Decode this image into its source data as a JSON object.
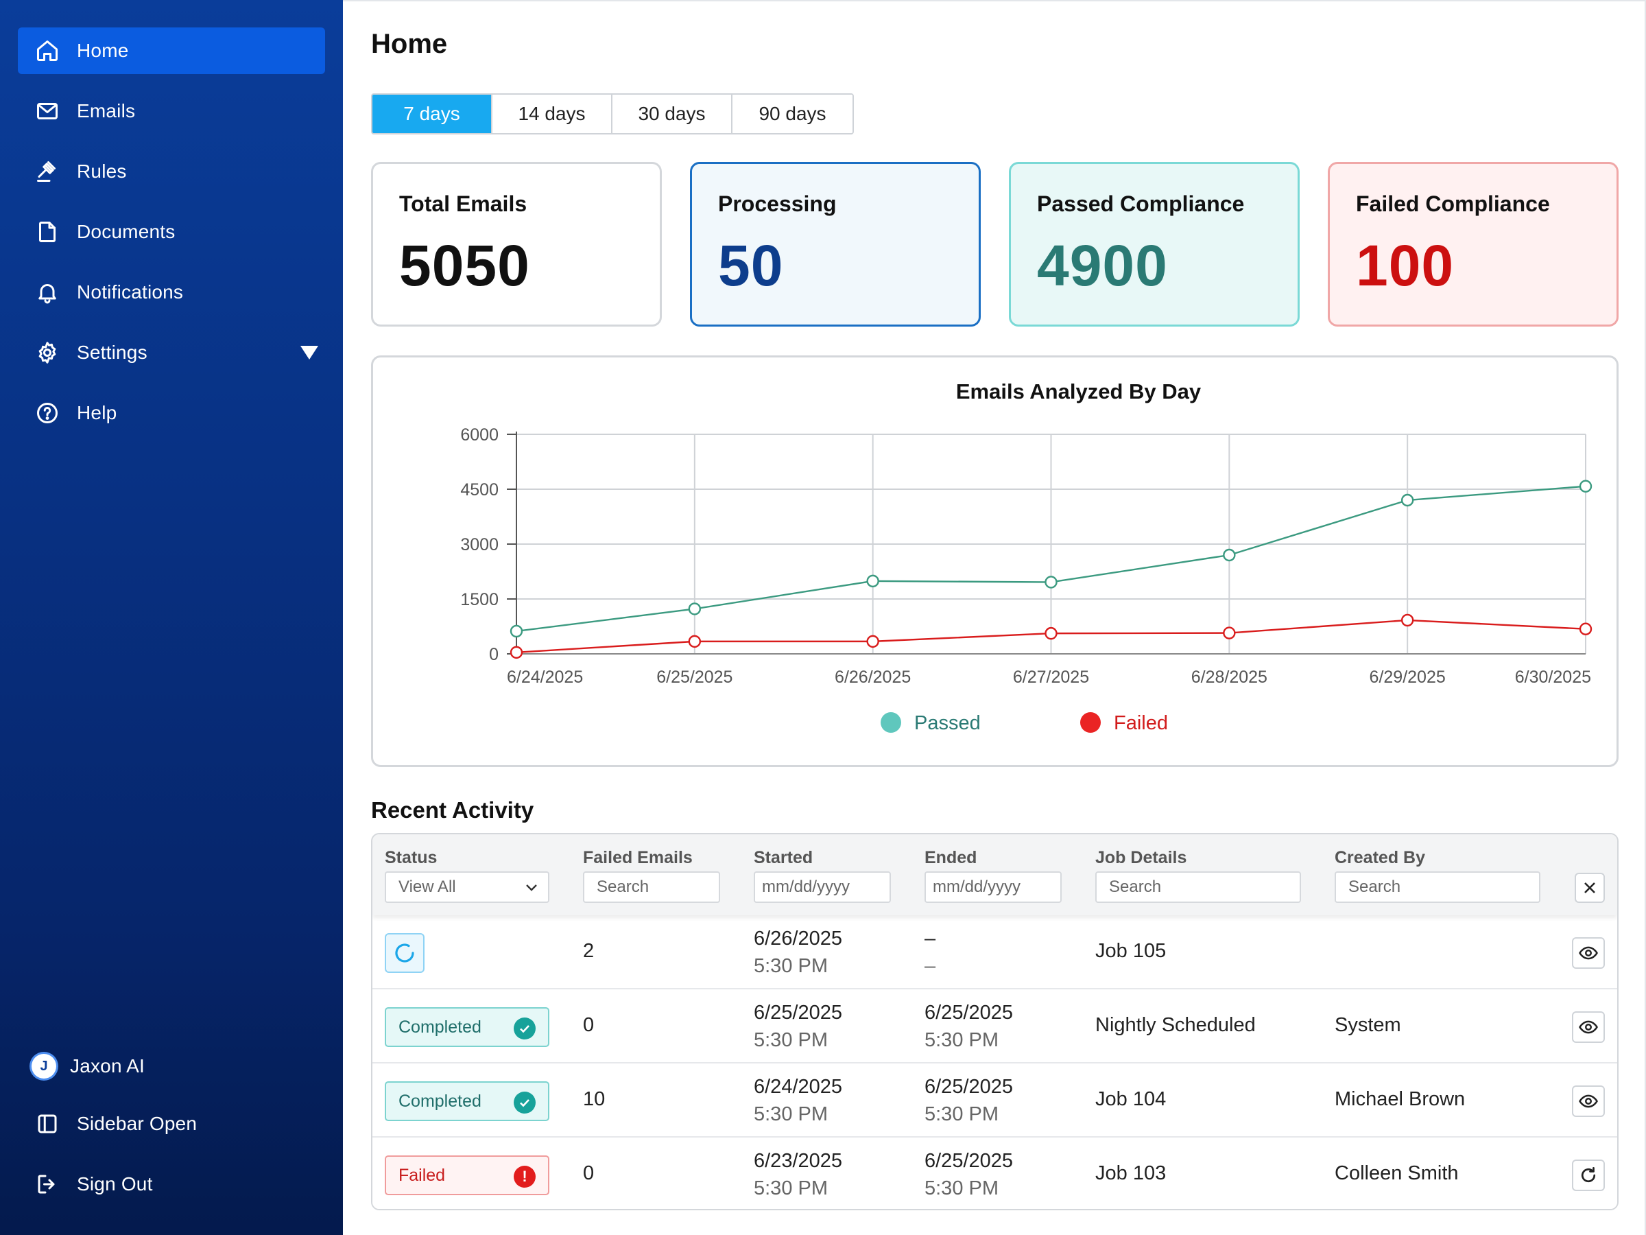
{
  "sidebar": {
    "nav": [
      {
        "label": "Home",
        "icon": "home-icon"
      },
      {
        "label": "Emails",
        "icon": "mail-icon"
      },
      {
        "label": "Rules",
        "icon": "gavel-icon"
      },
      {
        "label": "Documents",
        "icon": "document-icon"
      },
      {
        "label": "Notifications",
        "icon": "bell-icon"
      },
      {
        "label": "Settings",
        "icon": "gear-icon"
      },
      {
        "label": "Help",
        "icon": "help-icon"
      }
    ],
    "footer": {
      "org_initial": "J",
      "org_name": "Jaxon AI",
      "sidebar_toggle": "Sidebar Open",
      "sign_out": "Sign Out"
    }
  },
  "header": {
    "title": "Home"
  },
  "ranges": [
    "7 days",
    "14 days",
    "30 days",
    "90 days"
  ],
  "stats": {
    "total": {
      "title": "Total Emails",
      "value": "5050"
    },
    "processing": {
      "title": "Processing",
      "value": "50"
    },
    "passed": {
      "title": "Passed Compliance",
      "value": "4900"
    },
    "failed": {
      "title": "Failed Compliance",
      "value": "100"
    }
  },
  "colors": {
    "passed_line": "#3b9a80",
    "failed_line": "#d91c1c",
    "total_value": "#111111",
    "processing_value": "#0d3d8c",
    "passed_value": "#2a7a74",
    "failed_value": "#cc1010"
  },
  "chart_data": {
    "type": "line",
    "title": "Emails Analyzed By Day",
    "categories": [
      "6/24/2025",
      "6/25/2025",
      "6/26/2025",
      "6/27/2025",
      "6/28/2025",
      "6/29/2025",
      "6/30/2025"
    ],
    "series": [
      {
        "name": "Passed",
        "values": [
          620,
          1230,
          1990,
          1960,
          2700,
          4200,
          4580
        ]
      },
      {
        "name": "Failed",
        "values": [
          40,
          340,
          340,
          560,
          570,
          920,
          680
        ]
      }
    ],
    "yticks": [
      "6000",
      "4500",
      "3000",
      "1500",
      "0"
    ],
    "ylim": [
      0,
      6000
    ],
    "legend": "bottom"
  },
  "recent": {
    "title": "Recent Activity",
    "columns": [
      "Status",
      "Failed Emails",
      "Started",
      "Ended",
      "Job Details",
      "Created By"
    ],
    "filters": {
      "status": "View All",
      "failed": "Search",
      "started": "mm/dd/yyyy",
      "ended": "mm/dd/yyyy",
      "job": "Search",
      "created": "Search"
    },
    "rows": [
      {
        "status": "",
        "failed": "2",
        "started_date": "6/26/2025",
        "started_time": "5:30 PM",
        "ended_date": "–",
        "ended_time": "–",
        "job": "Job 105",
        "created_by": ""
      },
      {
        "status": "Completed",
        "failed": "0",
        "started_date": "6/25/2025",
        "started_time": "5:30 PM",
        "ended_date": "6/25/2025",
        "ended_time": "5:30 PM",
        "job": "Nightly Scheduled",
        "created_by": "System"
      },
      {
        "status": "Completed",
        "failed": "10",
        "started_date": "6/24/2025",
        "started_time": "5:30 PM",
        "ended_date": "6/25/2025",
        "ended_time": "5:30 PM",
        "job": "Job 104",
        "created_by": "Michael Brown"
      },
      {
        "status": "Failed",
        "failed": "0",
        "started_date": "6/23/2025",
        "started_time": "5:30 PM",
        "ended_date": "6/25/2025",
        "ended_time": "5:30 PM",
        "job": "Job 103",
        "created_by": "Colleen Smith"
      }
    ]
  }
}
